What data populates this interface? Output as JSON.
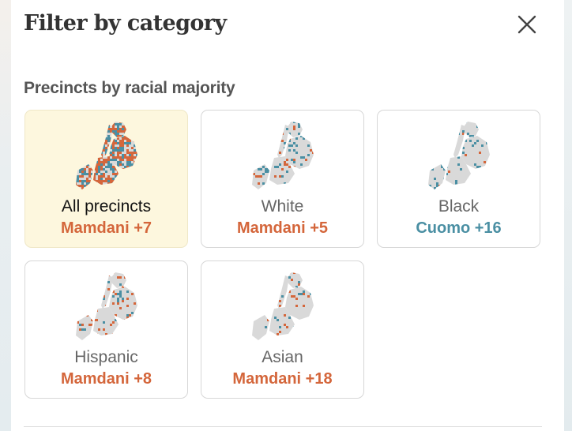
{
  "header": {
    "title": "Filter by category",
    "close_icon": "close-icon"
  },
  "section": {
    "title": "Precincts by racial majority"
  },
  "colors": {
    "mamdani": "#d4663b",
    "cuomo": "#4a8fa3",
    "map_base": "#d9d9d9",
    "selected_bg": "#fdf7de"
  },
  "cards": [
    {
      "name": "All precincts",
      "margin": "Mamdani +7",
      "leader": "mamdani",
      "selected": true
    },
    {
      "name": "White",
      "margin": "Mamdani +5",
      "leader": "mamdani",
      "selected": false
    },
    {
      "name": "Black",
      "margin": "Cuomo +16",
      "leader": "cuomo",
      "selected": false
    },
    {
      "name": "Hispanic",
      "margin": "Mamdani +8",
      "leader": "mamdani",
      "selected": false
    },
    {
      "name": "Asian",
      "margin": "Mamdani +18",
      "leader": "mamdani",
      "selected": false
    }
  ]
}
